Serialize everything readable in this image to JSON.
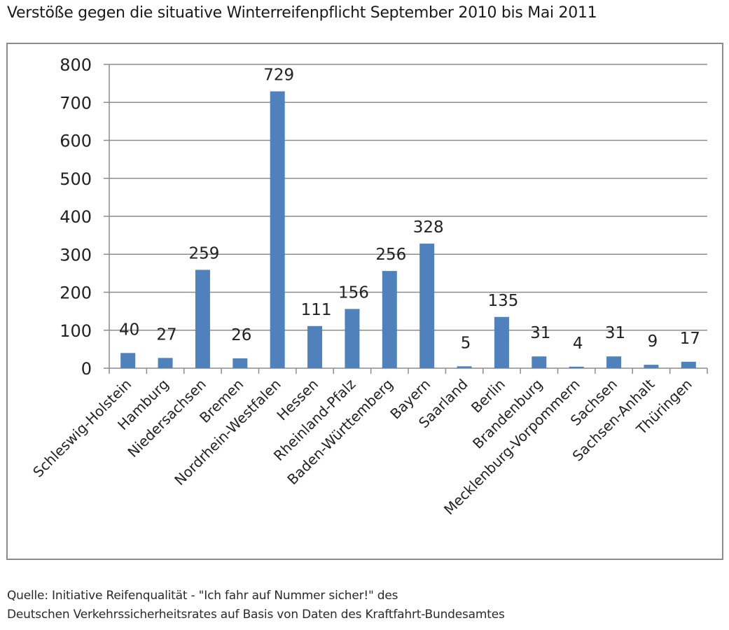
{
  "chart_data": {
    "type": "bar",
    "title": "Verstöße gegen die situative Winterreifenpflicht September 2010 bis Mai 2011",
    "xlabel": "",
    "ylabel": "",
    "ylim": [
      0,
      800
    ],
    "yticks": [
      0,
      100,
      200,
      300,
      400,
      500,
      600,
      700,
      800
    ],
    "grid": true,
    "legend": null,
    "bar_color": "#4F81BD",
    "data_labels": true,
    "categories": [
      "Schleswig-Holstein",
      "Hamburg",
      "Niedersachsen",
      "Bremen",
      "Nordrhein-Westfalen",
      "Hessen",
      "Rheinland-Pfalz",
      "Baden-Württemberg",
      "Bayern",
      "Saarland",
      "Berlin",
      "Brandenburg",
      "Mecklenburg-Vorpommern",
      "Sachsen",
      "Sachsen-Anhalt",
      "Thüringen"
    ],
    "values": [
      40,
      27,
      259,
      26,
      729,
      111,
      156,
      256,
      328,
      5,
      135,
      31,
      4,
      31,
      9,
      17
    ]
  },
  "header": {
    "title": "Verstöße gegen die situative Winterreifenpflicht September 2010 bis Mai 2011"
  },
  "footer": {
    "source_line1": "Quelle: Initiative Reifenqualität - \"Ich fahr auf Nummer sicher!\" des",
    "source_line2": "Deutschen Verkehrssicherheitsrates auf Basis von Daten des Kraftfahrt-Bundesamtes"
  }
}
